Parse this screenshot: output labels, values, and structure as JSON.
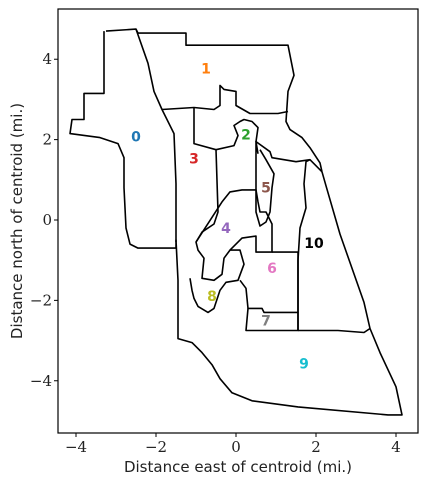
{
  "chart_data": {
    "type": "map",
    "xlabel": "Distance east of centroid (mi.)",
    "ylabel": "Distance north of centroid (mi.)",
    "xlim": [
      -4.45,
      4.55
    ],
    "ylim": [
      -5.3,
      5.25
    ],
    "x_ticks": [
      -4,
      -2,
      0,
      2,
      4
    ],
    "y_ticks": [
      -4,
      -2,
      0,
      2,
      4
    ],
    "x_tick_labels": [
      "−4",
      "−2",
      "0",
      "2",
      "4"
    ],
    "y_tick_labels": [
      "−4",
      "−2",
      "0",
      "2",
      "4"
    ],
    "grid": false,
    "line_color": "#000000",
    "districts": [
      {
        "label": "0",
        "x": -2.5,
        "y": 2.05,
        "color": "#1f77b4"
      },
      {
        "label": "1",
        "x": -0.75,
        "y": 3.75,
        "color": "#ff7f0e"
      },
      {
        "label": "2",
        "x": 0.25,
        "y": 2.1,
        "color": "#2ca02c"
      },
      {
        "label": "3",
        "x": -1.05,
        "y": 1.5,
        "color": "#d62728"
      },
      {
        "label": "4",
        "x": -0.25,
        "y": -0.22,
        "color": "#9467bd"
      },
      {
        "label": "5",
        "x": 0.75,
        "y": 0.78,
        "color": "#8c564b"
      },
      {
        "label": "6",
        "x": 0.9,
        "y": -1.22,
        "color": "#e377c2"
      },
      {
        "label": "7",
        "x": 0.75,
        "y": -2.52,
        "color": "#7f7f7f"
      },
      {
        "label": "8",
        "x": -0.6,
        "y": -1.92,
        "color": "#bcbd22"
      },
      {
        "label": "9",
        "x": 1.7,
        "y": -3.6,
        "color": "#17becf"
      },
      {
        "label": "10",
        "x": 1.95,
        "y": -0.6,
        "color": "#000000"
      }
    ],
    "boundaries": [
      [
        [
          -3.25,
          4.7
        ],
        [
          -2.5,
          4.75
        ],
        [
          -2.45,
          4.65
        ],
        [
          -1.25,
          4.65
        ],
        [
          -1.25,
          4.35
        ],
        [
          1.3,
          4.35
        ],
        [
          1.45,
          3.6
        ],
        [
          1.3,
          3.2
        ],
        [
          1.25,
          2.45
        ],
        [
          1.35,
          2.25
        ],
        [
          1.65,
          2.05
        ],
        [
          1.85,
          1.8
        ],
        [
          2.1,
          1.42
        ],
        [
          2.15,
          1.2
        ],
        [
          2.25,
          0.85
        ],
        [
          2.6,
          -0.35
        ],
        [
          3.2,
          -2.05
        ],
        [
          3.35,
          -2.7
        ],
        [
          3.6,
          -3.3
        ],
        [
          4.0,
          -4.15
        ],
        [
          4.15,
          -4.85
        ],
        [
          3.8,
          -4.85
        ],
        [
          1.55,
          -4.65
        ],
        [
          0.4,
          -4.5
        ],
        [
          -0.1,
          -4.3
        ],
        [
          -0.4,
          -3.95
        ],
        [
          -0.6,
          -3.6
        ],
        [
          -0.85,
          -3.3
        ],
        [
          -1.1,
          -3.05
        ],
        [
          -1.45,
          -2.95
        ],
        [
          -1.45,
          -1.5
        ],
        [
          -1.5,
          -0.5
        ],
        [
          -1.5,
          -0.7
        ],
        [
          -2.45,
          -0.7
        ],
        [
          -2.65,
          -0.6
        ],
        [
          -2.75,
          -0.2
        ],
        [
          -2.8,
          0.8
        ],
        [
          -2.8,
          1.55
        ],
        [
          -2.95,
          1.9
        ],
        [
          -3.4,
          2.05
        ],
        [
          -4.15,
          2.15
        ],
        [
          -4.1,
          2.5
        ],
        [
          -3.8,
          2.5
        ],
        [
          -3.8,
          3.15
        ],
        [
          -3.3,
          3.15
        ],
        [
          -3.3,
          3.8
        ],
        [
          -3.3,
          4.7
        ]
      ],
      [
        [
          -1.5,
          -0.55
        ],
        [
          -1.5,
          0.9
        ],
        [
          -1.55,
          2.15
        ],
        [
          -1.85,
          2.75
        ],
        [
          -2.05,
          3.2
        ],
        [
          -2.2,
          3.9
        ],
        [
          -2.5,
          4.75
        ]
      ],
      [
        [
          -1.85,
          2.75
        ],
        [
          -1.05,
          2.8
        ],
        [
          -0.55,
          2.75
        ],
        [
          -0.4,
          2.85
        ],
        [
          -0.4,
          3.35
        ],
        [
          -0.3,
          3.25
        ],
        [
          0.0,
          3.2
        ],
        [
          0.0,
          2.85
        ],
        [
          0.35,
          2.65
        ],
        [
          1.05,
          2.65
        ],
        [
          1.3,
          2.7
        ]
      ],
      [
        [
          -1.05,
          2.8
        ],
        [
          -1.05,
          1.9
        ],
        [
          -0.5,
          1.75
        ],
        [
          -0.45,
          0.2
        ],
        [
          -0.55,
          -0.1
        ],
        [
          -0.85,
          -0.3
        ],
        [
          -1.0,
          -0.55
        ],
        [
          -0.95,
          -0.75
        ],
        [
          -0.8,
          -0.95
        ],
        [
          -0.85,
          -1.45
        ],
        [
          -0.55,
          -1.5
        ],
        [
          -0.35,
          -1.35
        ],
        [
          -0.3,
          -0.95
        ],
        [
          -0.15,
          -0.75
        ],
        [
          0.1,
          -0.75
        ],
        [
          0.2,
          -1.1
        ],
        [
          0.05,
          -1.5
        ],
        [
          -0.25,
          -1.55
        ],
        [
          -0.4,
          -1.75
        ],
        [
          -0.55,
          -2.2
        ],
        [
          -0.7,
          -2.3
        ],
        [
          -0.95,
          -2.15
        ],
        [
          -1.05,
          -1.95
        ],
        [
          -1.1,
          -1.75
        ],
        [
          -1.15,
          -1.45
        ]
      ],
      [
        [
          -0.5,
          1.75
        ],
        [
          -0.05,
          1.85
        ],
        [
          0.05,
          2.1
        ],
        [
          -0.05,
          2.35
        ],
        [
          0.1,
          2.45
        ],
        [
          0.2,
          2.5
        ],
        [
          0.4,
          2.45
        ],
        [
          0.55,
          2.3
        ],
        [
          0.5,
          1.95
        ],
        [
          0.85,
          1.7
        ],
        [
          0.9,
          1.55
        ],
        [
          1.2,
          1.5
        ],
        [
          1.5,
          1.45
        ],
        [
          1.85,
          1.5
        ],
        [
          2.15,
          1.2
        ]
      ],
      [
        [
          -1.0,
          -0.55
        ],
        [
          -0.35,
          0.45
        ],
        [
          -0.15,
          0.7
        ],
        [
          0.15,
          0.75
        ],
        [
          0.5,
          0.75
        ],
        [
          0.55,
          0.45
        ],
        [
          0.6,
          0.2
        ],
        [
          0.75,
          0.2
        ],
        [
          0.9,
          -0.1
        ],
        [
          0.9,
          -0.8
        ],
        [
          0.5,
          -0.8
        ],
        [
          0.5,
          -0.4
        ],
        [
          0.15,
          -0.45
        ],
        [
          -0.15,
          -0.75
        ]
      ],
      [
        [
          0.55,
          1.65
        ],
        [
          0.5,
          1.95
        ],
        [
          0.5,
          0.2
        ],
        [
          0.6,
          -0.15
        ],
        [
          0.75,
          -0.05
        ],
        [
          0.85,
          0.2
        ],
        [
          0.9,
          0.8
        ],
        [
          0.95,
          1.15
        ],
        [
          0.75,
          1.5
        ],
        [
          0.6,
          1.75
        ]
      ],
      [
        [
          0.9,
          -0.8
        ],
        [
          1.55,
          -0.8
        ],
        [
          1.55,
          -2.3
        ],
        [
          0.7,
          -2.3
        ],
        [
          0.65,
          -2.2
        ],
        [
          0.3,
          -2.2
        ],
        [
          0.25,
          -1.7
        ],
        [
          0.1,
          -1.5
        ]
      ],
      [
        [
          0.3,
          -2.2
        ],
        [
          0.25,
          -2.75
        ],
        [
          1.55,
          -2.75
        ],
        [
          1.55,
          -2.3
        ],
        [
          1.55,
          -1.0
        ],
        [
          1.6,
          -0.2
        ],
        [
          1.75,
          0.3
        ],
        [
          1.7,
          0.9
        ],
        [
          1.75,
          1.45
        ],
        [
          1.85,
          1.5
        ]
      ],
      [
        [
          1.55,
          -2.75
        ],
        [
          2.55,
          -2.75
        ],
        [
          3.2,
          -2.8
        ],
        [
          3.35,
          -2.7
        ]
      ],
      [
        [
          1.55,
          -2.3
        ],
        [
          1.55,
          -2.75
        ]
      ]
    ]
  }
}
